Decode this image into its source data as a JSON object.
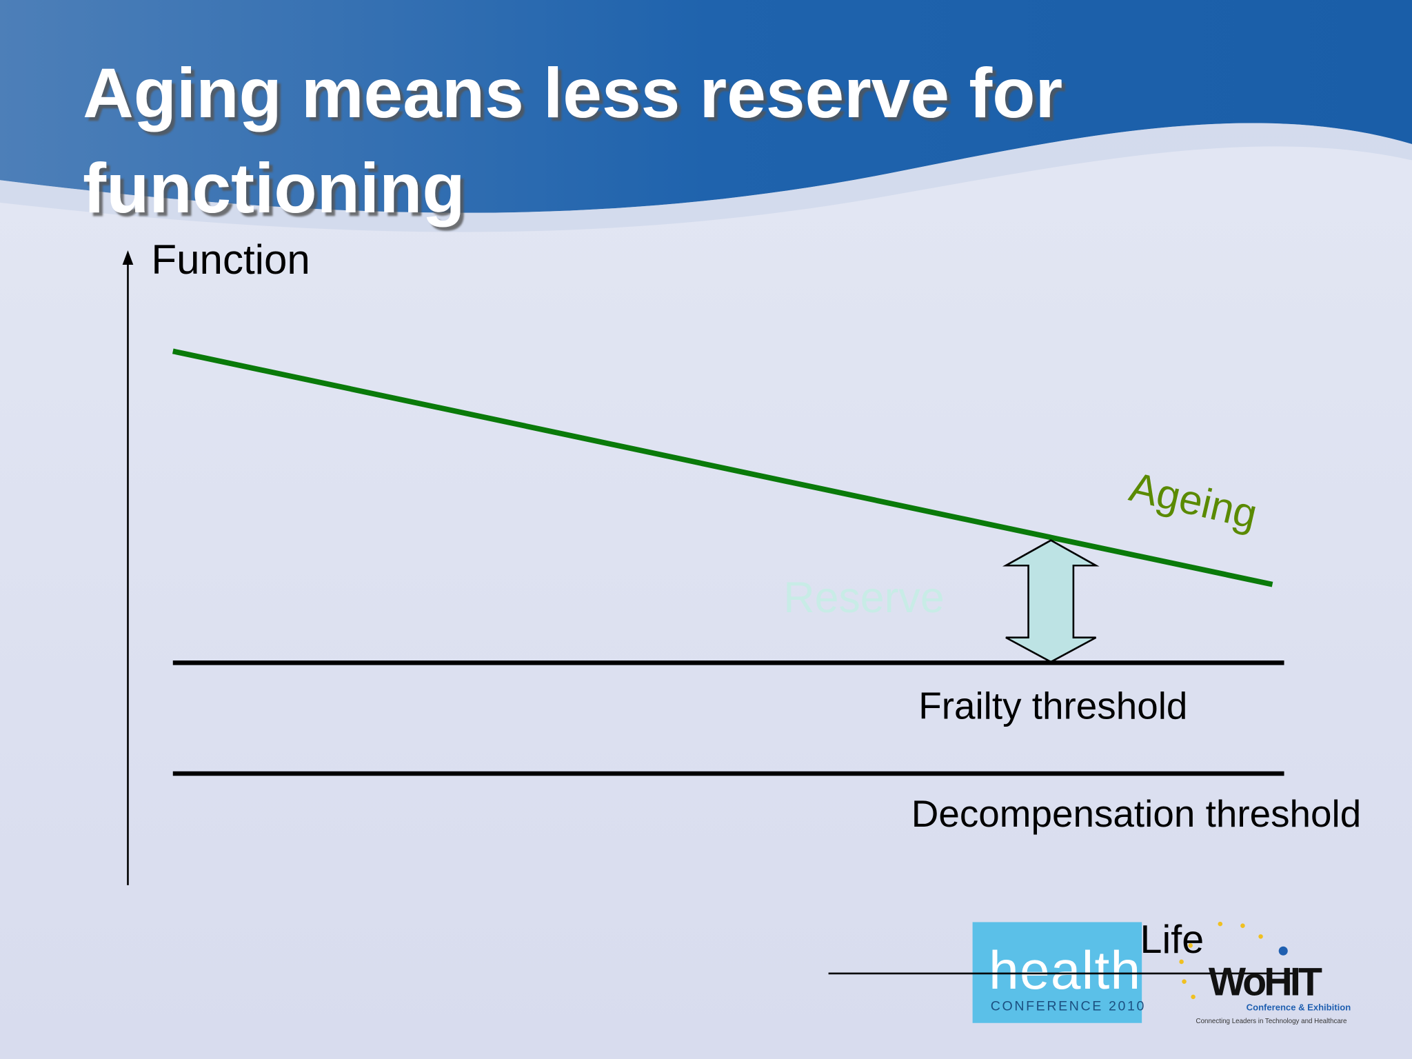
{
  "title": {
    "lines": [
      "Aging means less reserve for",
      "functioning"
    ]
  },
  "axis_label": "Function",
  "curve_label": "Ageing",
  "reserve_label": "Reserve",
  "thresholds": [
    "Frailty threshold",
    "Decompensation threshold"
  ],
  "logos": {
    "health": "health",
    "health_sub": "CONFERENCE 2010",
    "life": "Life",
    "wohit": "WoHIT",
    "wohit_sub": "Conference & Exhibition",
    "wohit_tagline": "Connecting Leaders in Technology and Healthcare"
  }
}
